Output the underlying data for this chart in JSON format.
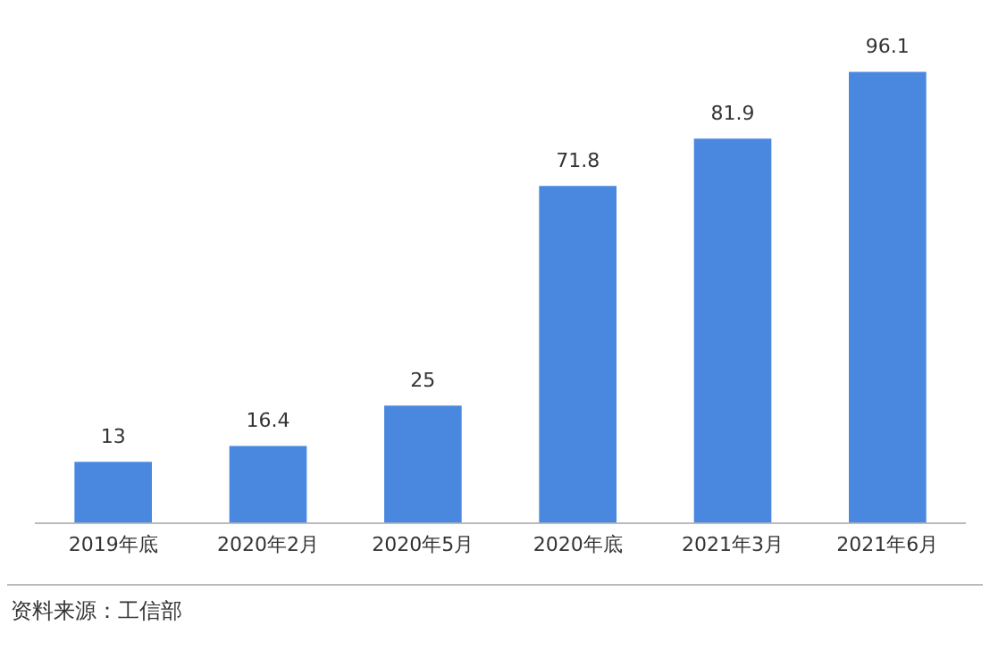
{
  "chart_data": {
    "type": "bar",
    "categories": [
      "2019年底",
      "2020年2月",
      "2020年5月",
      "2020年底",
      "2021年3月",
      "2021年6月"
    ],
    "values": [
      13,
      16.4,
      25,
      71.8,
      81.9,
      96.1
    ],
    "color": "#4a88e0",
    "data_labels": true,
    "grid": false,
    "legend": false,
    "annotations": [
      "资料来源：工信部"
    ]
  }
}
